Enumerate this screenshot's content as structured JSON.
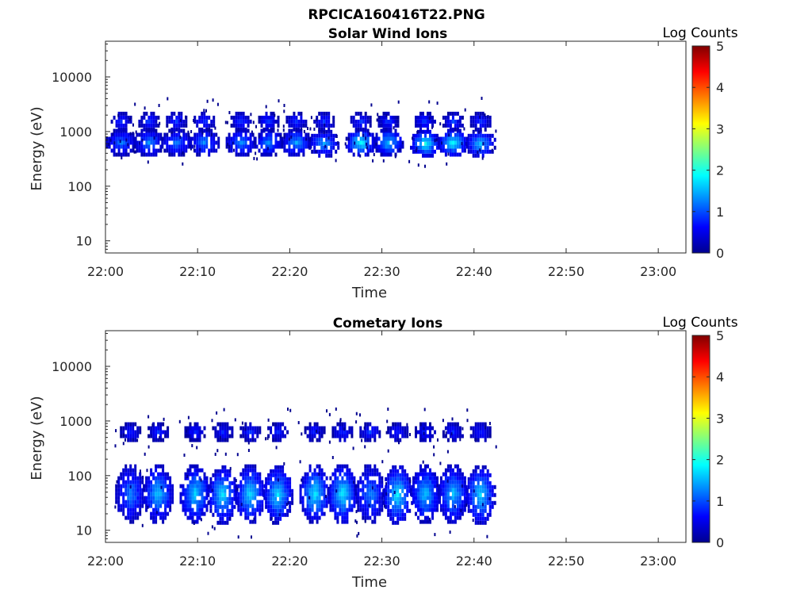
{
  "figure_title": "RPCICA160416T22.PNG",
  "colormap": [
    "#00008f",
    "#0000ff",
    "#0080ff",
    "#00ffff",
    "#80ff80",
    "#ffff00",
    "#ff8000",
    "#ff0000",
    "#800000"
  ],
  "chart_data": [
    {
      "type": "heatmap",
      "title": "Solar Wind Ions",
      "xlabel": "Time",
      "ylabel": "Energy (eV)",
      "y_scale": "log",
      "xlim": [
        "22:00",
        "23:03"
      ],
      "ylim": [
        6,
        45000
      ],
      "x_ticks": [
        "22:00",
        "22:10",
        "22:20",
        "22:30",
        "22:40",
        "22:50",
        "23:00"
      ],
      "y_ticks": [
        {
          "value": 10,
          "label": "10"
        },
        {
          "value": 100,
          "label": "100"
        },
        {
          "value": 1000,
          "label": "1000"
        },
        {
          "value": 10000,
          "label": "10000"
        }
      ],
      "colorbar": {
        "label": "Log Counts",
        "range": [
          0,
          5
        ],
        "ticks": [
          "0",
          "1",
          "2",
          "3",
          "4",
          "5"
        ]
      },
      "clusters": [
        {
          "time": "22:01",
          "energy": 680,
          "log_counts": 1.2
        },
        {
          "time": "22:01",
          "energy": 1650,
          "log_counts": 0.9
        },
        {
          "time": "22:04",
          "energy": 680,
          "log_counts": 1.3
        },
        {
          "time": "22:04",
          "energy": 1650,
          "log_counts": 0.9
        },
        {
          "time": "22:07",
          "energy": 680,
          "log_counts": 1.2
        },
        {
          "time": "22:07",
          "energy": 1650,
          "log_counts": 0.9
        },
        {
          "time": "22:10",
          "energy": 680,
          "log_counts": 1.3
        },
        {
          "time": "22:10",
          "energy": 1650,
          "log_counts": 0.9
        },
        {
          "time": "22:14",
          "energy": 680,
          "log_counts": 1.3
        },
        {
          "time": "22:14",
          "energy": 1650,
          "log_counts": 0.9
        },
        {
          "time": "22:17",
          "energy": 680,
          "log_counts": 1.3
        },
        {
          "time": "22:17",
          "energy": 1650,
          "log_counts": 0.9
        },
        {
          "time": "22:20",
          "energy": 680,
          "log_counts": 1.4
        },
        {
          "time": "22:20",
          "energy": 1650,
          "log_counts": 0.9
        },
        {
          "time": "22:23",
          "energy": 650,
          "log_counts": 1.4
        },
        {
          "time": "22:23",
          "energy": 1650,
          "log_counts": 0.9
        },
        {
          "time": "22:27",
          "energy": 680,
          "log_counts": 1.9
        },
        {
          "time": "22:27",
          "energy": 1650,
          "log_counts": 0.9
        },
        {
          "time": "22:30",
          "energy": 680,
          "log_counts": 1.6
        },
        {
          "time": "22:30",
          "energy": 1650,
          "log_counts": 0.9
        },
        {
          "time": "22:34",
          "energy": 650,
          "log_counts": 1.9
        },
        {
          "time": "22:34",
          "energy": 1650,
          "log_counts": 0.9
        },
        {
          "time": "22:37",
          "energy": 680,
          "log_counts": 1.9
        },
        {
          "time": "22:37",
          "energy": 1650,
          "log_counts": 0.9
        },
        {
          "time": "22:40",
          "energy": 650,
          "log_counts": 1.6
        },
        {
          "time": "22:40",
          "energy": 1650,
          "log_counts": 0.9
        }
      ]
    },
    {
      "type": "heatmap",
      "title": "Cometary Ions",
      "xlabel": "Time",
      "ylabel": "Energy (eV)",
      "y_scale": "log",
      "xlim": [
        "22:00",
        "23:03"
      ],
      "ylim": [
        6,
        45000
      ],
      "x_ticks": [
        "22:00",
        "22:10",
        "22:20",
        "22:30",
        "22:40",
        "22:50",
        "23:00"
      ],
      "y_ticks": [
        {
          "value": 10,
          "label": "10"
        },
        {
          "value": 100,
          "label": "100"
        },
        {
          "value": 1000,
          "label": "1000"
        },
        {
          "value": 10000,
          "label": "10000"
        }
      ],
      "colorbar": {
        "label": "Log Counts",
        "range": [
          0,
          5
        ],
        "ticks": [
          "0",
          "1",
          "2",
          "3",
          "4",
          "5"
        ]
      },
      "clusters": [
        {
          "time": "22:02",
          "energy": 50,
          "log_counts": 1.3
        },
        {
          "time": "22:02",
          "energy": 680,
          "log_counts": 0.8
        },
        {
          "time": "22:05",
          "energy": 50,
          "log_counts": 1.6
        },
        {
          "time": "22:05",
          "energy": 680,
          "log_counts": 0.8
        },
        {
          "time": "22:09",
          "energy": 50,
          "log_counts": 1.7
        },
        {
          "time": "22:09",
          "energy": 680,
          "log_counts": 0.8
        },
        {
          "time": "22:12",
          "energy": 48,
          "log_counts": 1.7
        },
        {
          "time": "22:12",
          "energy": 680,
          "log_counts": 0.8
        },
        {
          "time": "22:15",
          "energy": 50,
          "log_counts": 1.7
        },
        {
          "time": "22:15",
          "energy": 680,
          "log_counts": 0.8
        },
        {
          "time": "22:18",
          "energy": 48,
          "log_counts": 1.7
        },
        {
          "time": "22:18",
          "energy": 680,
          "log_counts": 0.8
        },
        {
          "time": "22:22",
          "energy": 50,
          "log_counts": 1.8
        },
        {
          "time": "22:22",
          "energy": 680,
          "log_counts": 0.8
        },
        {
          "time": "22:25",
          "energy": 50,
          "log_counts": 1.8
        },
        {
          "time": "22:25",
          "energy": 680,
          "log_counts": 0.8
        },
        {
          "time": "22:28",
          "energy": 50,
          "log_counts": 1.3
        },
        {
          "time": "22:28",
          "energy": 680,
          "log_counts": 0.9
        },
        {
          "time": "22:31",
          "energy": 48,
          "log_counts": 1.8
        },
        {
          "time": "22:31",
          "energy": 680,
          "log_counts": 0.8
        },
        {
          "time": "22:34",
          "energy": 50,
          "log_counts": 1.6
        },
        {
          "time": "22:34",
          "energy": 680,
          "log_counts": 0.8
        },
        {
          "time": "22:37",
          "energy": 50,
          "log_counts": 1.6
        },
        {
          "time": "22:37",
          "energy": 680,
          "log_counts": 0.8
        },
        {
          "time": "22:40",
          "energy": 48,
          "log_counts": 1.7
        },
        {
          "time": "22:40",
          "energy": 680,
          "log_counts": 0.8
        }
      ]
    }
  ]
}
